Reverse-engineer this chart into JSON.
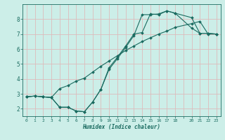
{
  "xlabel": "Humidex (Indice chaleur)",
  "background_color": "#cceee8",
  "grid_color": "#ddbbbb",
  "line_color": "#1a6b60",
  "xlim": [
    -0.5,
    23.5
  ],
  "ylim": [
    1.5,
    9.0
  ],
  "xticks": [
    0,
    1,
    2,
    3,
    4,
    5,
    6,
    7,
    8,
    9,
    10,
    11,
    12,
    13,
    14,
    15,
    16,
    17,
    18,
    19,
    20,
    21,
    22,
    23
  ],
  "xtick_labels": [
    "0",
    "1",
    "2",
    "3",
    "4",
    "5",
    "6",
    "7",
    "8",
    "9",
    "10",
    "11",
    "12",
    "13",
    "14",
    "15",
    "16",
    "17",
    "18",
    " ",
    "20",
    "21",
    "22",
    "23"
  ],
  "yticks": [
    2,
    3,
    4,
    5,
    6,
    7,
    8
  ],
  "line1_x": [
    0,
    1,
    2,
    3,
    4,
    5,
    6,
    7,
    8,
    9,
    10,
    11,
    12,
    13,
    14,
    15,
    16,
    17,
    18,
    20,
    21,
    22,
    23
  ],
  "line1_y": [
    2.8,
    2.85,
    2.8,
    2.75,
    2.1,
    2.1,
    1.85,
    1.8,
    2.45,
    3.3,
    4.75,
    5.45,
    6.2,
    7.0,
    7.1,
    8.35,
    8.3,
    8.55,
    8.4,
    8.1,
    7.05,
    7.05,
    7.0
  ],
  "line2_x": [
    0,
    1,
    2,
    3,
    4,
    5,
    6,
    7,
    8,
    9,
    10,
    11,
    12,
    13,
    14,
    15,
    16,
    17,
    18,
    20,
    21,
    22,
    23
  ],
  "line2_y": [
    2.8,
    2.85,
    2.8,
    2.75,
    3.35,
    3.55,
    3.85,
    4.05,
    4.45,
    4.85,
    5.2,
    5.55,
    5.9,
    6.2,
    6.5,
    6.75,
    7.0,
    7.2,
    7.45,
    7.7,
    7.85,
    7.0,
    7.0
  ],
  "line3_x": [
    0,
    1,
    2,
    3,
    4,
    5,
    6,
    7,
    8,
    9,
    10,
    11,
    12,
    13,
    14,
    15,
    16,
    17,
    18,
    20,
    21,
    22,
    23
  ],
  "line3_y": [
    2.8,
    2.85,
    2.8,
    2.75,
    2.1,
    2.1,
    1.85,
    1.8,
    2.45,
    3.3,
    4.65,
    5.35,
    6.1,
    6.9,
    8.3,
    8.3,
    8.35,
    8.55,
    8.4,
    7.4,
    7.05,
    7.05,
    7.0
  ]
}
